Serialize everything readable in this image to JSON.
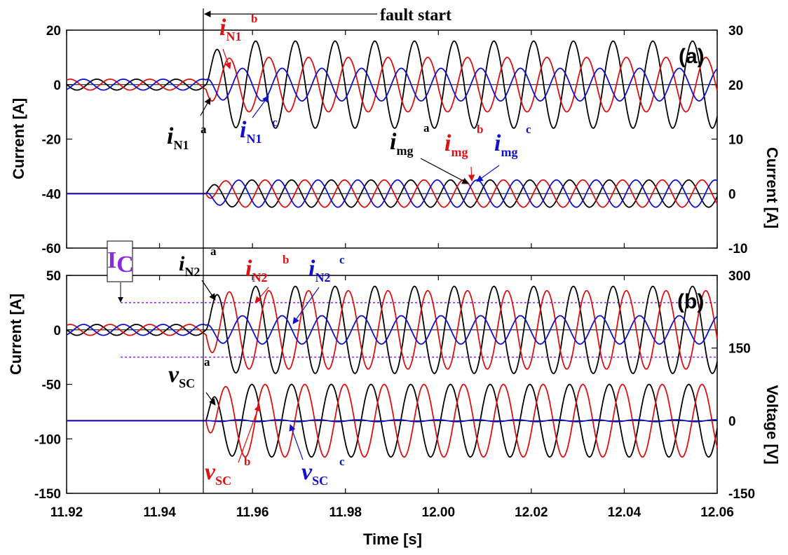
{
  "colors": {
    "a": "#000000",
    "b": "#dd1111",
    "c": "#1111cc",
    "ic": "#8a2be2"
  },
  "annotations": {
    "fault_start": "fault start",
    "ic_main": "I",
    "ic_sub": "C",
    "iN1a": {
      "main": "i",
      "sub": "N1",
      "sup": "a"
    },
    "iN1b": {
      "main": "i",
      "sub": "N1",
      "sup": "b"
    },
    "iN1c": {
      "main": "i",
      "sub": "N1",
      "sup": "c"
    },
    "imga": {
      "main": "i",
      "sub": "mg",
      "sup": "a"
    },
    "imgb": {
      "main": "i",
      "sub": "mg",
      "sup": "b"
    },
    "imgc": {
      "main": "i",
      "sub": "mg",
      "sup": "c"
    },
    "iN2a": {
      "main": "i",
      "sub": "N2",
      "sup": "a"
    },
    "iN2b": {
      "main": "i",
      "sub": "N2",
      "sup": "b"
    },
    "iN2c": {
      "main": "i",
      "sub": "N2",
      "sup": "c"
    },
    "vSCa": {
      "main": "v",
      "sub": "SC",
      "sup": "a"
    },
    "vSCb": {
      "main": "v",
      "sub": "SC",
      "sup": "b"
    },
    "vSCc": {
      "main": "v",
      "sub": "SC",
      "sup": "c"
    }
  },
  "chart_data": [
    {
      "panel": "(a)",
      "type": "line",
      "xlabel": "",
      "ylabel": "Current [A]",
      "y2label": "Current [A]",
      "xlim": [
        11.92,
        12.06
      ],
      "ylim": [
        -60,
        20
      ],
      "y2lim": [
        -10,
        30
      ],
      "yticks": [
        20,
        0,
        -20,
        -40,
        -60
      ],
      "y2ticks": [
        30,
        20,
        10,
        0,
        -10
      ],
      "fault_time": 11.95,
      "frequency_hz": 117,
      "series": [
        {
          "name": "i_N1^a",
          "axis": "left",
          "pre_amplitude": 2,
          "post_amplitude": 16,
          "offset": 0
        },
        {
          "name": "i_N1^b",
          "axis": "left",
          "pre_amplitude": 2,
          "post_amplitude": 10,
          "offset": 0
        },
        {
          "name": "i_N1^c",
          "axis": "left",
          "pre_amplitude": 2,
          "post_amplitude": 6,
          "offset": 0
        },
        {
          "name": "i_mg^a",
          "axis": "right",
          "pre_amplitude": 0,
          "post_amplitude": 2.5,
          "offset": 0
        },
        {
          "name": "i_mg^b",
          "axis": "right",
          "pre_amplitude": 0,
          "post_amplitude": 2.5,
          "offset": 0
        },
        {
          "name": "i_mg^c",
          "axis": "right",
          "pre_amplitude": 0,
          "post_amplitude": 2.5,
          "offset": 0
        }
      ]
    },
    {
      "panel": "(b)",
      "type": "line",
      "xlabel": "Time [s]",
      "ylabel": "Current [A]",
      "y2label": "Voltage [V]",
      "xlim": [
        11.92,
        12.06
      ],
      "ylim": [
        -150,
        50
      ],
      "y2lim": [
        -150,
        300
      ],
      "yticks": [
        50,
        0,
        -50,
        -100,
        -150
      ],
      "y2ticks": [
        300,
        150,
        0,
        -150
      ],
      "xticks": [
        "11.92",
        "11.94",
        "11.96",
        "11.98",
        "12.00",
        "12.02",
        "12.04",
        "12.06"
      ],
      "fault_time": 11.95,
      "frequency_hz": 117,
      "current_limit": 25,
      "series": [
        {
          "name": "i_N2^a",
          "axis": "left",
          "pre_amplitude": 5,
          "post_amplitude": 40,
          "offset": 0
        },
        {
          "name": "i_N2^b",
          "axis": "left",
          "pre_amplitude": 5,
          "post_amplitude": 36,
          "offset": 0
        },
        {
          "name": "i_N2^c",
          "axis": "left",
          "pre_amplitude": 5,
          "post_amplitude": 13,
          "offset": 0
        },
        {
          "name": "v_SC^a",
          "axis": "right",
          "pre_amplitude": 0,
          "post_amplitude": 75,
          "offset": 0
        },
        {
          "name": "v_SC^b",
          "axis": "right",
          "pre_amplitude": 0,
          "post_amplitude": 75,
          "offset": 0
        },
        {
          "name": "v_SC^c",
          "axis": "right",
          "pre_amplitude": 0,
          "post_amplitude": 2,
          "offset": 0
        }
      ]
    }
  ]
}
